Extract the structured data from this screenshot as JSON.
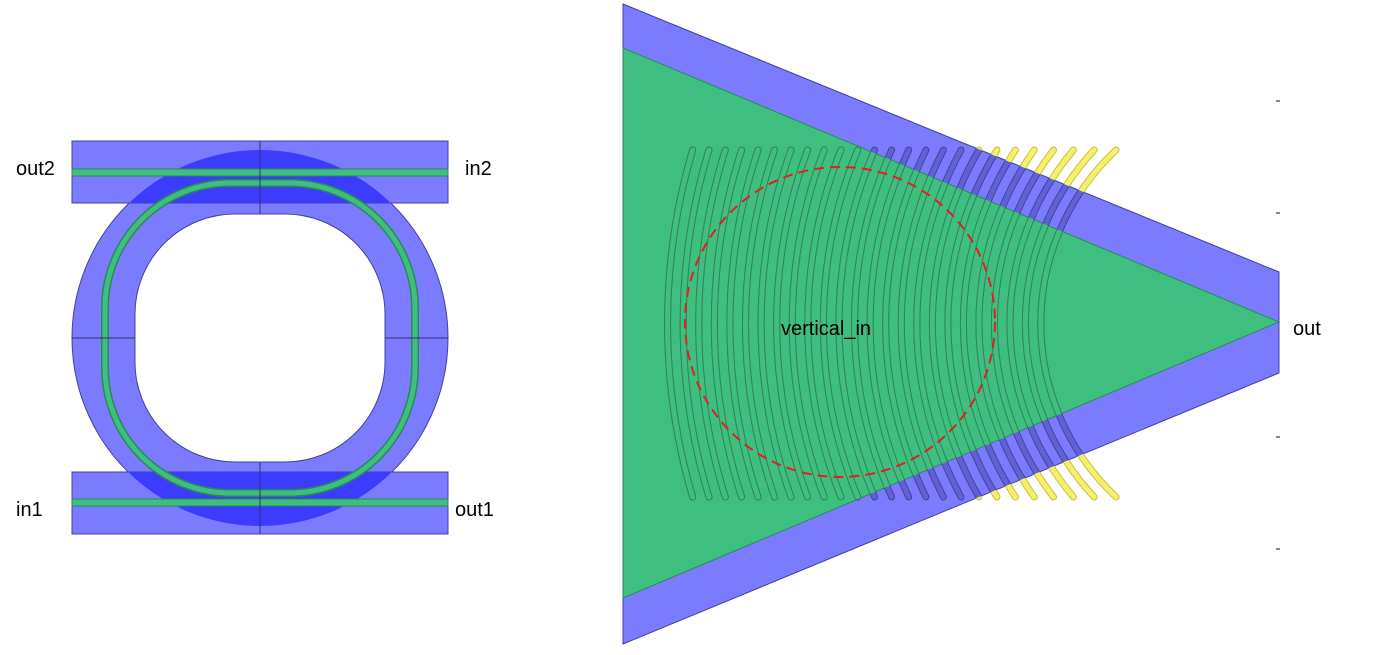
{
  "ring_component": {
    "ports": {
      "in1": "in1",
      "out1": "out1",
      "in2": "in2",
      "out2": "out2"
    }
  },
  "grating_component": {
    "ports": {
      "vertical_in": "vertical_in",
      "out": "out"
    }
  },
  "colors": {
    "cladding": "#7b7bff",
    "cladding_overlap": "#3c3cff",
    "core": "#3fbf7f",
    "grating_teeth_outside": "#f5f06a",
    "fiber_marker": "#e02020"
  }
}
